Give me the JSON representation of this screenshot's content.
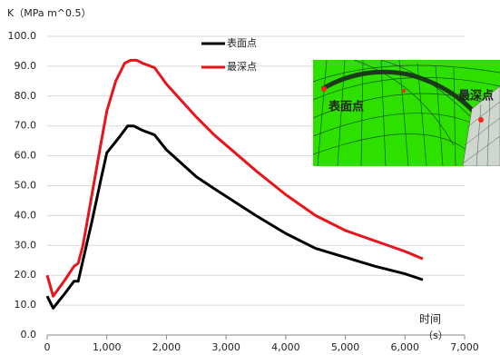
{
  "chart_data": {
    "type": "line",
    "y_label": "K（MPa m^0.5）",
    "x_label": "时间",
    "x_unit": "（s）",
    "xlim": [
      0,
      7000
    ],
    "xticks": [
      0,
      {
        "value": 1000,
        "label": "1,000"
      },
      {
        "value": 2000,
        "label": "2,000"
      },
      {
        "value": 3000,
        "label": "3,000"
      },
      {
        "value": 4000,
        "label": "4,000"
      },
      {
        "value": 5000,
        "label": "5,000"
      },
      {
        "value": 6000,
        "label": "6,000"
      },
      {
        "value": 7000,
        "label": "7,000"
      }
    ],
    "ylim": [
      0,
      100
    ],
    "yticks": [
      {
        "value": 0,
        "label": "0.0"
      },
      {
        "value": 10,
        "label": "10.0"
      },
      {
        "value": 20,
        "label": "20.0"
      },
      {
        "value": 30,
        "label": "30.0"
      },
      {
        "value": 40,
        "label": "40.0"
      },
      {
        "value": 50,
        "label": "50.0"
      },
      {
        "value": 60,
        "label": "60.0"
      },
      {
        "value": 70,
        "label": "70.0"
      },
      {
        "value": 80,
        "label": "80.0"
      },
      {
        "value": 90,
        "label": "90.0"
      },
      {
        "value": 100,
        "label": "100.0"
      }
    ],
    "grid": true,
    "series": [
      {
        "name": "表面点",
        "color": "#000000",
        "x": [
          0,
          100,
          300,
          450,
          520,
          600,
          750,
          900,
          1000,
          1200,
          1350,
          1450,
          1600,
          1800,
          2000,
          2500,
          2800,
          3500,
          4000,
          4500,
          5000,
          5500,
          6000,
          6300
        ],
        "values": [
          13,
          9,
          14,
          18,
          18,
          25,
          38,
          52,
          61,
          66,
          70,
          70,
          68.5,
          67,
          62,
          53,
          49,
          40,
          34,
          29,
          26,
          23,
          20.5,
          18.5
        ]
      },
      {
        "name": "最深点",
        "color": "#e8141c",
        "x": [
          0,
          100,
          300,
          450,
          520,
          600,
          750,
          900,
          1000,
          1150,
          1300,
          1400,
          1500,
          1600,
          1800,
          2000,
          2500,
          2800,
          3500,
          4000,
          4500,
          5000,
          5500,
          6000,
          6300
        ],
        "values": [
          20,
          13,
          18.5,
          23,
          24,
          30,
          47,
          64,
          75,
          85,
          91,
          92,
          92,
          91,
          89.5,
          84,
          73,
          67,
          55,
          47,
          40,
          35,
          31.5,
          28,
          25.5
        ]
      }
    ],
    "annotations": [
      "表面点",
      "最深点"
    ]
  }
}
